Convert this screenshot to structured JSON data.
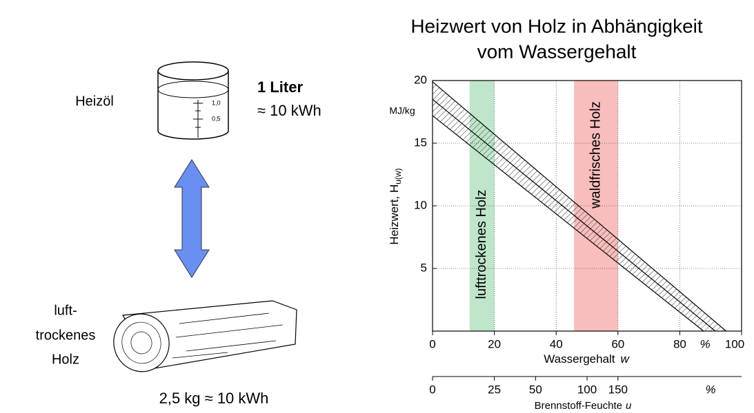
{
  "left_panel": {
    "oil_label": "Heizöl",
    "beaker_marks": [
      "1,0",
      "0,5"
    ],
    "oil_amount": "1 Liter",
    "oil_energy": "≈ 10 kWh",
    "wood_label": [
      "luft-",
      "trockenes",
      "Holz"
    ],
    "wood_energy": "2,5 kg ≈ 10 kWh"
  },
  "chart_data": {
    "type": "line",
    "title": [
      "Heizwert von Holz in Abhängigkeit",
      "vom Wassergehalt"
    ],
    "x_label": "Wassergehalt",
    "x_label_var": "w",
    "x_unit": "%",
    "y_label": "Heizwert, H",
    "y_label_sub": "u(w)",
    "y_unit": "MJ/kg",
    "xlim": [
      0,
      100
    ],
    "ylim": [
      0,
      20
    ],
    "xticks": [
      0,
      20,
      40,
      60,
      80,
      100
    ],
    "yticks": [
      5,
      10,
      15,
      20
    ],
    "grid": true,
    "x2_label": "Brennstoff-Feuchte",
    "x2_label_var": "u",
    "x2_unit": "%",
    "x2ticks": [
      0,
      25,
      50,
      100,
      150
    ],
    "series": [
      {
        "color": "#000000",
        "x": [
          0,
          95
        ],
        "values": [
          19.9,
          0
        ]
      },
      {
        "color": "#000000",
        "x": [
          0,
          91.5
        ],
        "values": [
          18.5,
          0
        ]
      },
      {
        "color": "#000000",
        "x": [
          0,
          87.7
        ],
        "values": [
          17.2,
          0
        ]
      }
    ],
    "regions": [
      {
        "label": "lufttrockenes Holz",
        "x": [
          12,
          20
        ],
        "color": "#bfe5cb"
      },
      {
        "label": "waldfrisches Holz",
        "x": [
          45.8,
          60
        ],
        "color": "#f8bdbd"
      }
    ]
  }
}
